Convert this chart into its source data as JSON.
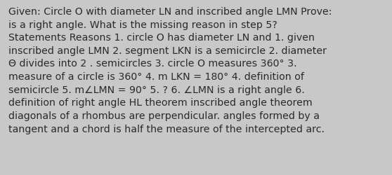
{
  "background_color": "#c8c8c8",
  "text_color": "#2a2a2a",
  "font_size": 10.2,
  "text_content": "Given: Circle O with diameter LN and inscribed angle LMN Prove:\nis a right angle. What is the missing reason in step 5?\nStatements Reasons 1. circle O has diameter LN and 1. given\ninscribed angle LMN 2. segment LKN is a semicircle 2. diameter\nΘ divides into 2 . semicircles 3. circle O measures 360° 3.\nmeasure of a circle is 360° 4. m LKN = 180° 4. definition of\nsemicircle 5. m∠LMN = 90° 5. ? 6. ∠LMN is a right angle 6.\ndefinition of right angle HL theorem inscribed angle theorem\ndiagonals of a rhombus are perpendicular. angles formed by a\ntangent and a chord is half the measure of the intercepted arc."
}
